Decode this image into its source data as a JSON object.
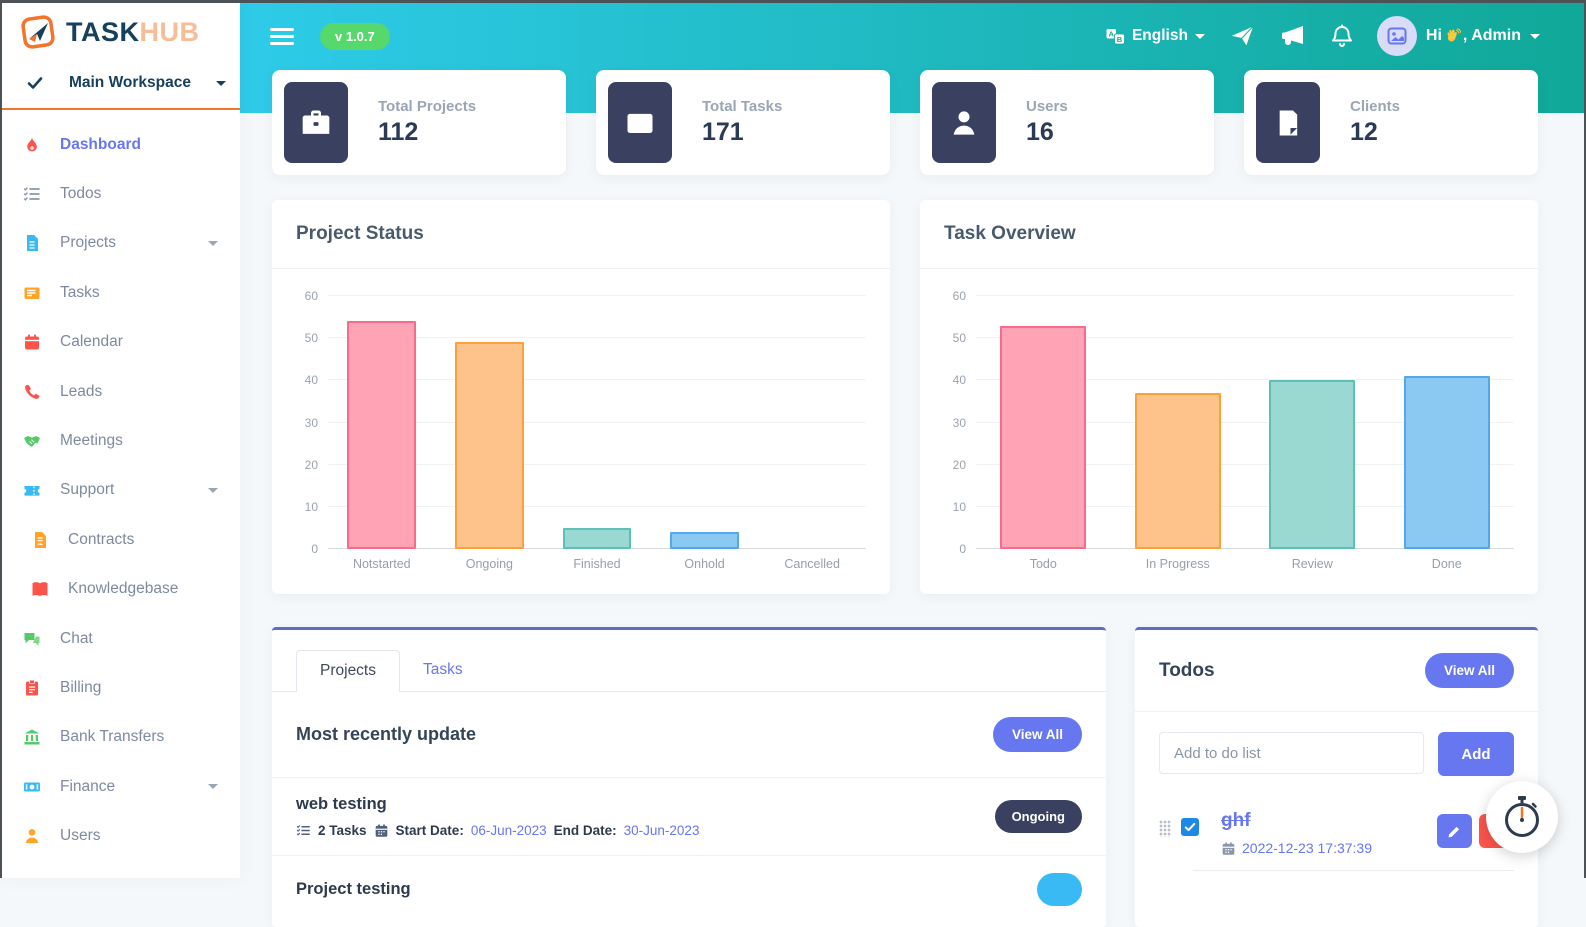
{
  "colors": {
    "accent": "#6777EF",
    "topbar_from": "#2ECBE9",
    "topbar_to": "#10A898",
    "badge_green": "#57D86C",
    "navy": "#3A4160",
    "danger": "#FC544B",
    "orange_rule": "#F2752B"
  },
  "brand": {
    "name_primary": "TASK",
    "name_secondary": "HUB",
    "workspace": "Main Workspace"
  },
  "topbar": {
    "version": "v 1.0.7",
    "language": "English",
    "greeting_prefix": "Hi",
    "greeting_suffix": ", Admin"
  },
  "sidebar": {
    "items": [
      {
        "label": "Dashboard",
        "icon": "flame-icon",
        "color": "#FC544B",
        "active": true
      },
      {
        "label": "Todos",
        "icon": "list-check-icon",
        "color": "#8A97A8"
      },
      {
        "label": "Projects",
        "icon": "file-lines-icon",
        "color": "#3ABAF4",
        "caret": true
      },
      {
        "label": "Tasks",
        "icon": "newspaper-icon",
        "color": "#FFA426"
      },
      {
        "label": "Calendar",
        "icon": "calendar-icon",
        "color": "#FC544B"
      },
      {
        "label": "Leads",
        "icon": "phone-icon",
        "color": "#FC544B"
      },
      {
        "label": "Meetings",
        "icon": "handshake-icon",
        "color": "#54CA68"
      },
      {
        "label": "Support",
        "icon": "ticket-icon",
        "color": "#3ABAF4",
        "caret": true
      },
      {
        "label": "Contracts",
        "icon": "file-contract-icon",
        "color": "#FFA426",
        "indent": true
      },
      {
        "label": "Knowledgebase",
        "icon": "book-icon",
        "color": "#FC544B",
        "indent": true
      },
      {
        "label": "Chat",
        "icon": "comments-icon",
        "color": "#54CA68"
      },
      {
        "label": "Billing",
        "icon": "invoice-icon",
        "color": "#FC544B"
      },
      {
        "label": "Bank Transfers",
        "icon": "bank-icon",
        "color": "#54CA68"
      },
      {
        "label": "Finance",
        "icon": "money-icon",
        "color": "#3ABAF4",
        "caret": true
      },
      {
        "label": "Users",
        "icon": "user-icon",
        "color": "#FFA426"
      }
    ]
  },
  "stats": [
    {
      "label": "Total Projects",
      "value": "112",
      "icon": "briefcase-icon"
    },
    {
      "label": "Total Tasks",
      "value": "171",
      "icon": "newspaper-icon"
    },
    {
      "label": "Users",
      "value": "16",
      "icon": "person-icon"
    },
    {
      "label": "Clients",
      "value": "12",
      "icon": "file-icon"
    }
  ],
  "chart_data": [
    {
      "type": "bar",
      "title": "Project Status",
      "categories": [
        "Notstarted",
        "Ongoing",
        "Finished",
        "Onhold",
        "Cancelled"
      ],
      "values": [
        54,
        49,
        5,
        4,
        0
      ],
      "ylim": [
        0,
        60
      ],
      "ytick_step": 10,
      "grid": true,
      "legend": "none",
      "bar_fill": [
        "#FFA3B5",
        "#FDC38B",
        "#9AD9D1",
        "#8BC8F2",
        "#FFA3B5"
      ],
      "bar_stroke": [
        "#F76C8C",
        "#F9A23D",
        "#5CC0B4",
        "#53A8EA",
        "#F76C8C"
      ]
    },
    {
      "type": "bar",
      "title": "Task Overview",
      "categories": [
        "Todo",
        "In Progress",
        "Review",
        "Done"
      ],
      "values": [
        53,
        37,
        40,
        41
      ],
      "ylim": [
        0,
        60
      ],
      "ytick_step": 10,
      "grid": true,
      "legend": "none",
      "bar_fill": [
        "#FFA3B5",
        "#FDC38B",
        "#9AD9D1",
        "#8BC8F2"
      ],
      "bar_stroke": [
        "#F76C8C",
        "#F9A23D",
        "#5CC0B4",
        "#53A8EA"
      ]
    }
  ],
  "recent": {
    "tabs": [
      {
        "label": "Projects",
        "active": true
      },
      {
        "label": "Tasks",
        "active": false
      }
    ],
    "heading": "Most recently update",
    "view_all_label": "View All",
    "projects": [
      {
        "name": "web testing",
        "task_count": "2 Tasks",
        "start_label": "Start Date:",
        "start_date": "06-Jun-2023",
        "end_label": "End Date:",
        "end_date": "30-Jun-2023",
        "status": "Ongoing",
        "status_bg": "#3A4160"
      },
      {
        "name": "Project testing",
        "status": "",
        "status_bg": "#3ABAF4",
        "clipped": true
      }
    ]
  },
  "todos": {
    "heading": "Todos",
    "view_all_label": "View All",
    "input_placeholder": "Add to do list",
    "add_label": "Add",
    "items": [
      {
        "text": "ghf",
        "datetime": "2022-12-23 17:37:39",
        "completed": true
      }
    ]
  }
}
